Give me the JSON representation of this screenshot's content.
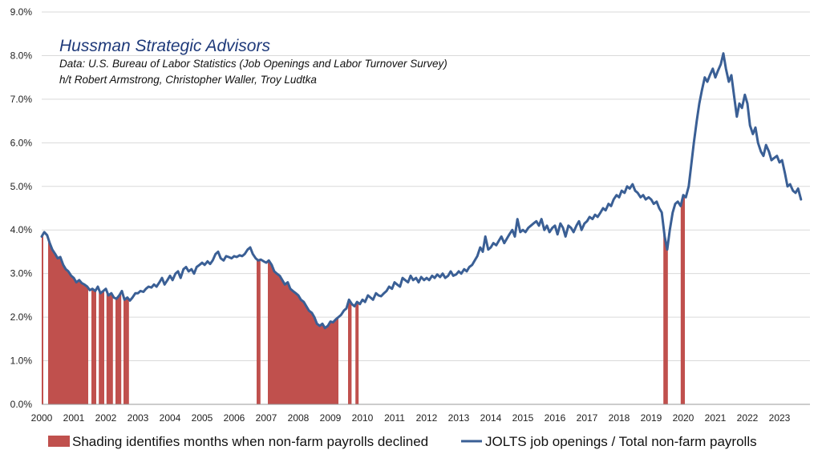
{
  "chart_data": {
    "type": "line",
    "annotation": {
      "title": "Hussman Strategic Advisors",
      "lines": [
        "Data: U.S. Bureau of Labor Statistics (Job Openings and Labor Turnover Survey)",
        "h/t Robert Armstrong, Christopher Waller, Troy Ludtka"
      ]
    },
    "x_ticks": [
      "2000",
      "2001",
      "2002",
      "2003",
      "2004",
      "2005",
      "2006",
      "2007",
      "2008",
      "2009",
      "2010",
      "2011",
      "2012",
      "2013",
      "2014",
      "2015",
      "2016",
      "2017",
      "2018",
      "2019",
      "2020",
      "2021",
      "2022",
      "2023"
    ],
    "y_ticks": [
      "0.0%",
      "1.0%",
      "2.0%",
      "3.0%",
      "4.0%",
      "5.0%",
      "6.0%",
      "7.0%",
      "8.0%",
      "9.0%"
    ],
    "ylim": [
      0,
      9
    ],
    "xlim": [
      2000,
      2023.95
    ],
    "grid": true,
    "legend_position": "bottom",
    "series": [
      {
        "name": "JOLTS job openings / Total non-farm payrolls",
        "kind": "line",
        "color": "#3a5f95",
        "points": [
          [
            2000.0,
            3.85
          ],
          [
            2000.08,
            3.95
          ],
          [
            2000.17,
            3.88
          ],
          [
            2000.25,
            3.7
          ],
          [
            2000.33,
            3.55
          ],
          [
            2000.42,
            3.45
          ],
          [
            2000.5,
            3.35
          ],
          [
            2000.58,
            3.38
          ],
          [
            2000.67,
            3.2
          ],
          [
            2000.75,
            3.1
          ],
          [
            2000.83,
            3.05
          ],
          [
            2000.92,
            2.95
          ],
          [
            2001.0,
            2.9
          ],
          [
            2001.08,
            2.8
          ],
          [
            2001.17,
            2.85
          ],
          [
            2001.25,
            2.78
          ],
          [
            2001.33,
            2.75
          ],
          [
            2001.42,
            2.7
          ],
          [
            2001.5,
            2.62
          ],
          [
            2001.58,
            2.65
          ],
          [
            2001.67,
            2.6
          ],
          [
            2001.75,
            2.7
          ],
          [
            2001.83,
            2.55
          ],
          [
            2001.92,
            2.6
          ],
          [
            2002.0,
            2.65
          ],
          [
            2002.08,
            2.5
          ],
          [
            2002.17,
            2.55
          ],
          [
            2002.25,
            2.45
          ],
          [
            2002.33,
            2.42
          ],
          [
            2002.42,
            2.5
          ],
          [
            2002.5,
            2.6
          ],
          [
            2002.58,
            2.4
          ],
          [
            2002.67,
            2.45
          ],
          [
            2002.75,
            2.38
          ],
          [
            2002.83,
            2.45
          ],
          [
            2002.92,
            2.55
          ],
          [
            2003.0,
            2.55
          ],
          [
            2003.08,
            2.6
          ],
          [
            2003.17,
            2.58
          ],
          [
            2003.25,
            2.65
          ],
          [
            2003.33,
            2.7
          ],
          [
            2003.42,
            2.68
          ],
          [
            2003.5,
            2.75
          ],
          [
            2003.58,
            2.7
          ],
          [
            2003.67,
            2.8
          ],
          [
            2003.75,
            2.9
          ],
          [
            2003.83,
            2.75
          ],
          [
            2003.92,
            2.85
          ],
          [
            2004.0,
            2.95
          ],
          [
            2004.08,
            2.85
          ],
          [
            2004.17,
            3.0
          ],
          [
            2004.25,
            3.05
          ],
          [
            2004.33,
            2.9
          ],
          [
            2004.42,
            3.1
          ],
          [
            2004.5,
            3.15
          ],
          [
            2004.58,
            3.05
          ],
          [
            2004.67,
            3.1
          ],
          [
            2004.75,
            3.0
          ],
          [
            2004.83,
            3.15
          ],
          [
            2004.92,
            3.2
          ],
          [
            2005.0,
            3.25
          ],
          [
            2005.08,
            3.2
          ],
          [
            2005.17,
            3.28
          ],
          [
            2005.25,
            3.22
          ],
          [
            2005.33,
            3.3
          ],
          [
            2005.42,
            3.45
          ],
          [
            2005.5,
            3.5
          ],
          [
            2005.58,
            3.35
          ],
          [
            2005.67,
            3.3
          ],
          [
            2005.75,
            3.4
          ],
          [
            2005.83,
            3.38
          ],
          [
            2005.92,
            3.35
          ],
          [
            2006.0,
            3.4
          ],
          [
            2006.08,
            3.38
          ],
          [
            2006.17,
            3.42
          ],
          [
            2006.25,
            3.4
          ],
          [
            2006.33,
            3.45
          ],
          [
            2006.42,
            3.55
          ],
          [
            2006.5,
            3.6
          ],
          [
            2006.58,
            3.45
          ],
          [
            2006.67,
            3.35
          ],
          [
            2006.75,
            3.3
          ],
          [
            2006.83,
            3.32
          ],
          [
            2006.92,
            3.28
          ],
          [
            2007.0,
            3.25
          ],
          [
            2007.08,
            3.3
          ],
          [
            2007.17,
            3.2
          ],
          [
            2007.25,
            3.05
          ],
          [
            2007.33,
            3.0
          ],
          [
            2007.42,
            2.95
          ],
          [
            2007.5,
            2.85
          ],
          [
            2007.58,
            2.75
          ],
          [
            2007.67,
            2.8
          ],
          [
            2007.75,
            2.65
          ],
          [
            2007.83,
            2.6
          ],
          [
            2007.92,
            2.55
          ],
          [
            2008.0,
            2.5
          ],
          [
            2008.08,
            2.4
          ],
          [
            2008.17,
            2.35
          ],
          [
            2008.25,
            2.25
          ],
          [
            2008.33,
            2.15
          ],
          [
            2008.42,
            2.1
          ],
          [
            2008.5,
            2.0
          ],
          [
            2008.58,
            1.85
          ],
          [
            2008.67,
            1.8
          ],
          [
            2008.75,
            1.85
          ],
          [
            2008.83,
            1.75
          ],
          [
            2008.92,
            1.8
          ],
          [
            2009.0,
            1.9
          ],
          [
            2009.08,
            1.88
          ],
          [
            2009.17,
            1.95
          ],
          [
            2009.25,
            2.0
          ],
          [
            2009.33,
            2.05
          ],
          [
            2009.42,
            2.15
          ],
          [
            2009.5,
            2.2
          ],
          [
            2009.58,
            2.4
          ],
          [
            2009.67,
            2.3
          ],
          [
            2009.75,
            2.25
          ],
          [
            2009.83,
            2.35
          ],
          [
            2009.92,
            2.3
          ],
          [
            2010.0,
            2.4
          ],
          [
            2010.08,
            2.35
          ],
          [
            2010.17,
            2.5
          ],
          [
            2010.25,
            2.45
          ],
          [
            2010.33,
            2.4
          ],
          [
            2010.42,
            2.55
          ],
          [
            2010.5,
            2.5
          ],
          [
            2010.58,
            2.48
          ],
          [
            2010.67,
            2.55
          ],
          [
            2010.75,
            2.6
          ],
          [
            2010.83,
            2.7
          ],
          [
            2010.92,
            2.65
          ],
          [
            2011.0,
            2.8
          ],
          [
            2011.08,
            2.75
          ],
          [
            2011.17,
            2.7
          ],
          [
            2011.25,
            2.9
          ],
          [
            2011.33,
            2.85
          ],
          [
            2011.42,
            2.8
          ],
          [
            2011.5,
            2.95
          ],
          [
            2011.58,
            2.85
          ],
          [
            2011.67,
            2.9
          ],
          [
            2011.75,
            2.8
          ],
          [
            2011.83,
            2.92
          ],
          [
            2011.92,
            2.85
          ],
          [
            2012.0,
            2.9
          ],
          [
            2012.08,
            2.85
          ],
          [
            2012.17,
            2.95
          ],
          [
            2012.25,
            2.9
          ],
          [
            2012.33,
            2.98
          ],
          [
            2012.42,
            2.92
          ],
          [
            2012.5,
            3.0
          ],
          [
            2012.58,
            2.9
          ],
          [
            2012.67,
            2.95
          ],
          [
            2012.75,
            3.05
          ],
          [
            2012.83,
            2.95
          ],
          [
            2012.92,
            2.98
          ],
          [
            2013.0,
            3.05
          ],
          [
            2013.08,
            3.0
          ],
          [
            2013.17,
            3.1
          ],
          [
            2013.25,
            3.05
          ],
          [
            2013.33,
            3.15
          ],
          [
            2013.42,
            3.2
          ],
          [
            2013.5,
            3.3
          ],
          [
            2013.58,
            3.4
          ],
          [
            2013.67,
            3.6
          ],
          [
            2013.75,
            3.5
          ],
          [
            2013.83,
            3.85
          ],
          [
            2013.92,
            3.55
          ],
          [
            2014.0,
            3.6
          ],
          [
            2014.08,
            3.7
          ],
          [
            2014.17,
            3.65
          ],
          [
            2014.25,
            3.75
          ],
          [
            2014.33,
            3.85
          ],
          [
            2014.42,
            3.7
          ],
          [
            2014.5,
            3.8
          ],
          [
            2014.58,
            3.9
          ],
          [
            2014.67,
            4.0
          ],
          [
            2014.75,
            3.85
          ],
          [
            2014.83,
            4.25
          ],
          [
            2014.92,
            3.95
          ],
          [
            2015.0,
            4.0
          ],
          [
            2015.08,
            3.95
          ],
          [
            2015.17,
            4.05
          ],
          [
            2015.25,
            4.1
          ],
          [
            2015.33,
            4.15
          ],
          [
            2015.42,
            4.2
          ],
          [
            2015.5,
            4.1
          ],
          [
            2015.58,
            4.25
          ],
          [
            2015.67,
            4.0
          ],
          [
            2015.75,
            4.1
          ],
          [
            2015.83,
            3.95
          ],
          [
            2015.92,
            4.05
          ],
          [
            2016.0,
            4.1
          ],
          [
            2016.08,
            3.9
          ],
          [
            2016.17,
            4.15
          ],
          [
            2016.25,
            4.05
          ],
          [
            2016.33,
            3.85
          ],
          [
            2016.42,
            4.1
          ],
          [
            2016.5,
            4.05
          ],
          [
            2016.58,
            3.95
          ],
          [
            2016.67,
            4.1
          ],
          [
            2016.75,
            4.2
          ],
          [
            2016.83,
            4.0
          ],
          [
            2016.92,
            4.15
          ],
          [
            2017.0,
            4.2
          ],
          [
            2017.08,
            4.3
          ],
          [
            2017.17,
            4.25
          ],
          [
            2017.25,
            4.35
          ],
          [
            2017.33,
            4.3
          ],
          [
            2017.42,
            4.4
          ],
          [
            2017.5,
            4.5
          ],
          [
            2017.58,
            4.45
          ],
          [
            2017.67,
            4.6
          ],
          [
            2017.75,
            4.55
          ],
          [
            2017.83,
            4.7
          ],
          [
            2017.92,
            4.8
          ],
          [
            2018.0,
            4.75
          ],
          [
            2018.08,
            4.9
          ],
          [
            2018.17,
            4.85
          ],
          [
            2018.25,
            5.0
          ],
          [
            2018.33,
            4.95
          ],
          [
            2018.42,
            5.05
          ],
          [
            2018.5,
            4.9
          ],
          [
            2018.58,
            4.85
          ],
          [
            2018.67,
            4.75
          ],
          [
            2018.75,
            4.8
          ],
          [
            2018.83,
            4.7
          ],
          [
            2018.92,
            4.75
          ],
          [
            2019.0,
            4.7
          ],
          [
            2019.08,
            4.6
          ],
          [
            2019.17,
            4.65
          ],
          [
            2019.25,
            4.5
          ],
          [
            2019.33,
            4.4
          ],
          [
            2019.42,
            3.85
          ],
          [
            2019.5,
            3.55
          ],
          [
            2019.58,
            4.0
          ],
          [
            2019.67,
            4.4
          ],
          [
            2019.75,
            4.6
          ],
          [
            2019.83,
            4.65
          ],
          [
            2019.92,
            4.55
          ],
          [
            2020.0,
            4.8
          ],
          [
            2020.08,
            4.75
          ],
          [
            2020.17,
            5.0
          ],
          [
            2020.25,
            5.5
          ],
          [
            2020.33,
            6.0
          ],
          [
            2020.42,
            6.5
          ],
          [
            2020.5,
            6.9
          ],
          [
            2020.58,
            7.2
          ],
          [
            2020.67,
            7.5
          ],
          [
            2020.75,
            7.4
          ],
          [
            2020.83,
            7.55
          ],
          [
            2020.92,
            7.7
          ],
          [
            2021.0,
            7.5
          ],
          [
            2021.08,
            7.65
          ],
          [
            2021.17,
            7.8
          ],
          [
            2021.25,
            8.05
          ],
          [
            2021.33,
            7.7
          ],
          [
            2021.42,
            7.4
          ],
          [
            2021.5,
            7.55
          ],
          [
            2021.58,
            7.1
          ],
          [
            2021.67,
            6.6
          ],
          [
            2021.75,
            6.9
          ],
          [
            2021.83,
            6.8
          ],
          [
            2021.92,
            7.1
          ],
          [
            2022.0,
            6.9
          ],
          [
            2022.08,
            6.4
          ],
          [
            2022.17,
            6.2
          ],
          [
            2022.25,
            6.35
          ],
          [
            2022.33,
            6.0
          ],
          [
            2022.42,
            5.8
          ],
          [
            2022.5,
            5.7
          ],
          [
            2022.58,
            5.95
          ],
          [
            2022.67,
            5.8
          ],
          [
            2022.75,
            5.6
          ],
          [
            2022.83,
            5.65
          ],
          [
            2022.92,
            5.7
          ],
          [
            2023.0,
            5.55
          ],
          [
            2023.08,
            5.6
          ],
          [
            2023.17,
            5.3
          ],
          [
            2023.25,
            5.0
          ],
          [
            2023.33,
            5.05
          ],
          [
            2023.42,
            4.9
          ],
          [
            2023.5,
            4.85
          ],
          [
            2023.58,
            4.95
          ],
          [
            2023.67,
            4.7
          ]
        ]
      },
      {
        "name": "Shading identifies months when non-farm payrolls declined",
        "kind": "shading",
        "color": "#c0504d",
        "ranges": [
          [
            2000.0,
            2000.05
          ],
          [
            2000.2,
            2001.45
          ],
          [
            2001.55,
            2001.7
          ],
          [
            2001.78,
            2001.95
          ],
          [
            2002.02,
            2002.22
          ],
          [
            2002.3,
            2002.48
          ],
          [
            2002.55,
            2002.72
          ],
          [
            2006.7,
            2006.82
          ],
          [
            2007.05,
            2009.25
          ],
          [
            2009.55,
            2009.66
          ],
          [
            2009.78,
            2009.88
          ],
          [
            2019.38,
            2019.52
          ],
          [
            2019.92,
            2020.05
          ]
        ]
      }
    ]
  }
}
